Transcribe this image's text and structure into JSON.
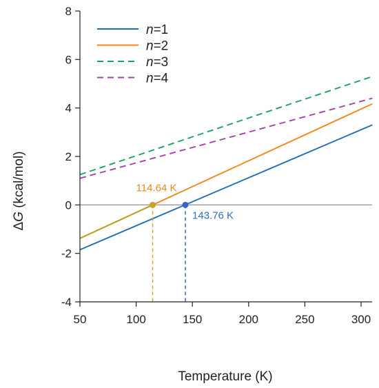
{
  "chart_data": {
    "type": "line",
    "xlabel": "Temperature (K)",
    "ylabel_prefix": "Δ",
    "ylabel_symbol": "G",
    "ylabel_suffix": " (kcal/mol)",
    "xlim": [
      50,
      310
    ],
    "ylim": [
      -4,
      8
    ],
    "x_ticks": [
      50,
      100,
      150,
      200,
      250,
      300
    ],
    "y_ticks": [
      -4,
      -2,
      0,
      2,
      4,
      6,
      8
    ],
    "grid": false,
    "legend_position": "top-left",
    "zero_line": {
      "y": 0,
      "color": "#999999"
    },
    "series": [
      {
        "name_symbol": "n",
        "name_rest": "=1",
        "color": "#1f6fb4",
        "style": "solid",
        "x": [
          50,
          310
        ],
        "y": [
          -1.85,
          3.3
        ]
      },
      {
        "name_symbol": "n",
        "name_rest": "=2",
        "color": "#f58518",
        "style": "solid",
        "x": [
          50,
          310
        ],
        "y": [
          -1.38,
          4.17
        ]
      },
      {
        "name_symbol": "n",
        "name_rest": "=3",
        "color": "#1aa35a",
        "style": "dashed",
        "x": [
          50,
          310
        ],
        "y": [
          1.25,
          5.3
        ]
      },
      {
        "name_symbol": "n",
        "name_rest": "=4",
        "color": "#a83fb0",
        "style": "dashed",
        "x": [
          50,
          310
        ],
        "y": [
          1.1,
          4.4
        ]
      }
    ],
    "annotations": [
      {
        "label": "114.64 K",
        "x": 114.64,
        "y": 0,
        "color": "#e8891e",
        "marker_color": "#c9a227",
        "drop_line_color": "#c9a227",
        "label_side": "above-left"
      },
      {
        "label": "143.76 K",
        "x": 143.76,
        "y": 0,
        "color": "#2f6fbf",
        "marker_color": "#3b63c8",
        "drop_line_color": "#2f55b8",
        "label_side": "below-right"
      }
    ],
    "overlap_color": "#b8a020"
  }
}
